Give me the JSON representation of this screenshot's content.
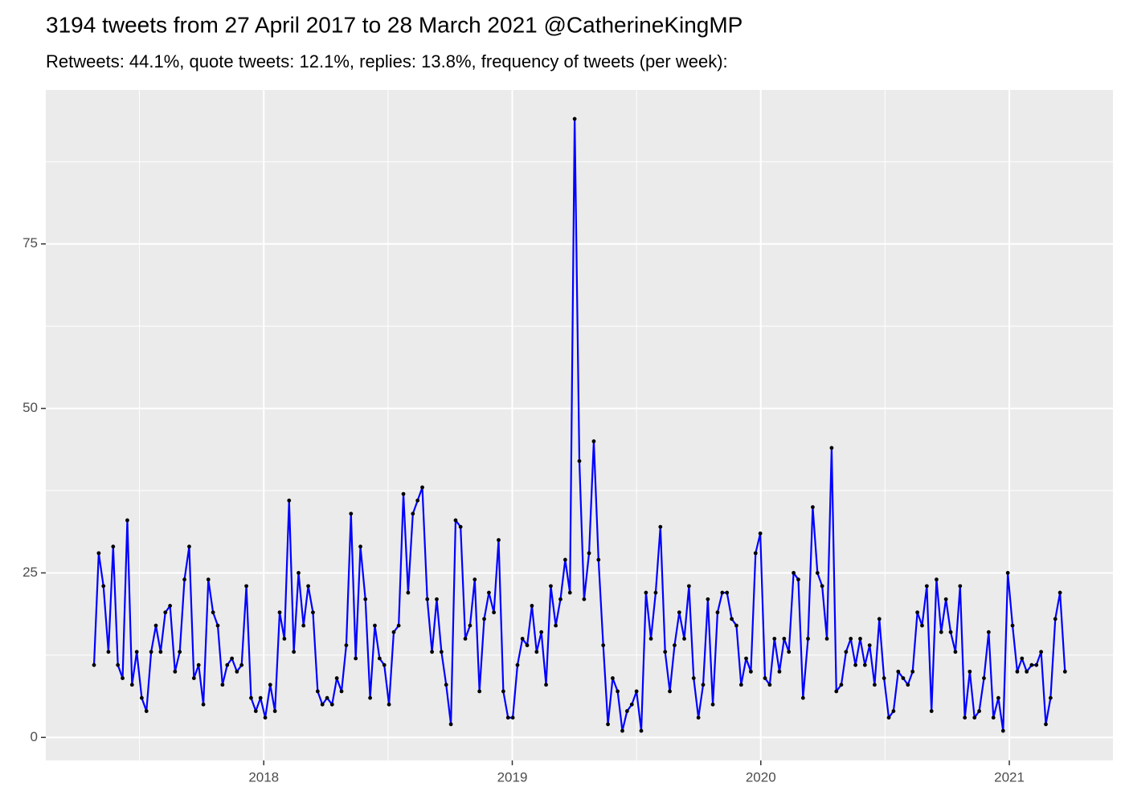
{
  "chart_data": {
    "type": "line",
    "title": "3194 tweets from 27 April 2017 to 28 March 2021 @CatherineKingMP",
    "subtitle": "Retweets: 44.1%, quote tweets: 12.1%, replies: 13.8%, frequency of tweets (per week):",
    "x": [
      2017.317,
      2017.336,
      2017.355,
      2017.375,
      2017.394,
      2017.413,
      2017.432,
      2017.451,
      2017.47,
      2017.489,
      2017.509,
      2017.528,
      2017.547,
      2017.566,
      2017.585,
      2017.604,
      2017.623,
      2017.643,
      2017.662,
      2017.681,
      2017.7,
      2017.719,
      2017.738,
      2017.757,
      2017.777,
      2017.796,
      2017.815,
      2017.834,
      2017.853,
      2017.872,
      2017.892,
      2017.911,
      2017.93,
      2017.949,
      2017.968,
      2017.987,
      2018.006,
      2018.026,
      2018.045,
      2018.064,
      2018.083,
      2018.102,
      2018.121,
      2018.14,
      2018.16,
      2018.179,
      2018.198,
      2018.217,
      2018.236,
      2018.255,
      2018.275,
      2018.294,
      2018.313,
      2018.332,
      2018.351,
      2018.37,
      2018.389,
      2018.409,
      2018.428,
      2018.447,
      2018.466,
      2018.485,
      2018.504,
      2018.523,
      2018.543,
      2018.562,
      2018.581,
      2018.6,
      2018.619,
      2018.638,
      2018.658,
      2018.677,
      2018.696,
      2018.715,
      2018.734,
      2018.753,
      2018.772,
      2018.792,
      2018.811,
      2018.83,
      2018.849,
      2018.868,
      2018.887,
      2018.906,
      2018.926,
      2018.945,
      2018.964,
      2018.983,
      2019.002,
      2019.021,
      2019.041,
      2019.06,
      2019.079,
      2019.098,
      2019.117,
      2019.136,
      2019.155,
      2019.175,
      2019.194,
      2019.213,
      2019.232,
      2019.251,
      2019.27,
      2019.289,
      2019.309,
      2019.328,
      2019.347,
      2019.366,
      2019.385,
      2019.404,
      2019.424,
      2019.443,
      2019.462,
      2019.481,
      2019.5,
      2019.519,
      2019.538,
      2019.558,
      2019.577,
      2019.596,
      2019.615,
      2019.634,
      2019.653,
      2019.672,
      2019.692,
      2019.711,
      2019.73,
      2019.749,
      2019.768,
      2019.787,
      2019.807,
      2019.826,
      2019.845,
      2019.864,
      2019.883,
      2019.902,
      2019.921,
      2019.941,
      2019.96,
      2019.979,
      2019.998,
      2020.017,
      2020.036,
      2020.055,
      2020.075,
      2020.094,
      2020.113,
      2020.132,
      2020.151,
      2020.17,
      2020.19,
      2020.209,
      2020.228,
      2020.247,
      2020.266,
      2020.285,
      2020.304,
      2020.324,
      2020.343,
      2020.362,
      2020.381,
      2020.4,
      2020.419,
      2020.438,
      2020.458,
      2020.477,
      2020.496,
      2020.515,
      2020.534,
      2020.553,
      2020.573,
      2020.592,
      2020.611,
      2020.63,
      2020.649,
      2020.668,
      2020.687,
      2020.707,
      2020.726,
      2020.745,
      2020.764,
      2020.783,
      2020.802,
      2020.821,
      2020.841,
      2020.86,
      2020.879,
      2020.898,
      2020.917,
      2020.936,
      2020.956,
      2020.975,
      2020.994,
      2021.013,
      2021.032,
      2021.051,
      2021.07,
      2021.09,
      2021.109,
      2021.128,
      2021.147,
      2021.166,
      2021.185,
      2021.204,
      2021.224
    ],
    "values": [
      11,
      28,
      23,
      13,
      29,
      11,
      9,
      33,
      8,
      13,
      6,
      4,
      13,
      17,
      13,
      19,
      20,
      10,
      13,
      24,
      29,
      9,
      11,
      5,
      24,
      19,
      17,
      8,
      11,
      12,
      10,
      11,
      23,
      6,
      4,
      6,
      3,
      8,
      4,
      19,
      15,
      36,
      13,
      25,
      17,
      23,
      19,
      7,
      5,
      6,
      5,
      9,
      7,
      14,
      34,
      12,
      29,
      21,
      6,
      17,
      12,
      11,
      5,
      16,
      17,
      37,
      22,
      34,
      36,
      38,
      21,
      13,
      21,
      13,
      8,
      2,
      33,
      32,
      15,
      17,
      24,
      7,
      18,
      22,
      19,
      30,
      7,
      3,
      3,
      11,
      15,
      14,
      20,
      13,
      16,
      8,
      23,
      17,
      21,
      27,
      22,
      94,
      42,
      21,
      28,
      45,
      27,
      14,
      2,
      9,
      7,
      1,
      4,
      5,
      7,
      1,
      22,
      15,
      22,
      32,
      13,
      7,
      14,
      19,
      15,
      23,
      9,
      3,
      8,
      21,
      5,
      19,
      22,
      22,
      18,
      17,
      8,
      12,
      10,
      28,
      31,
      9,
      8,
      15,
      10,
      15,
      13,
      25,
      24,
      6,
      15,
      35,
      25,
      23,
      15,
      44,
      7,
      8,
      13,
      15,
      11,
      15,
      11,
      14,
      8,
      18,
      9,
      3,
      4,
      10,
      9,
      8,
      10,
      19,
      17,
      23,
      4,
      24,
      16,
      21,
      16,
      13,
      23,
      3,
      10,
      3,
      4,
      9,
      16,
      3,
      6,
      1,
      25,
      17,
      10,
      12,
      10,
      11,
      11,
      13,
      2,
      6,
      18,
      22,
      10
    ],
    "color": "#0000ff",
    "point_color": "#000000",
    "xlim": [
      2017.123,
      2021.417
    ],
    "xticks": [
      2018,
      2019,
      2020,
      2021
    ],
    "ylim": [
      -3.5,
      98.4
    ],
    "yticks": [
      0,
      25,
      50,
      75
    ],
    "grid": true
  }
}
